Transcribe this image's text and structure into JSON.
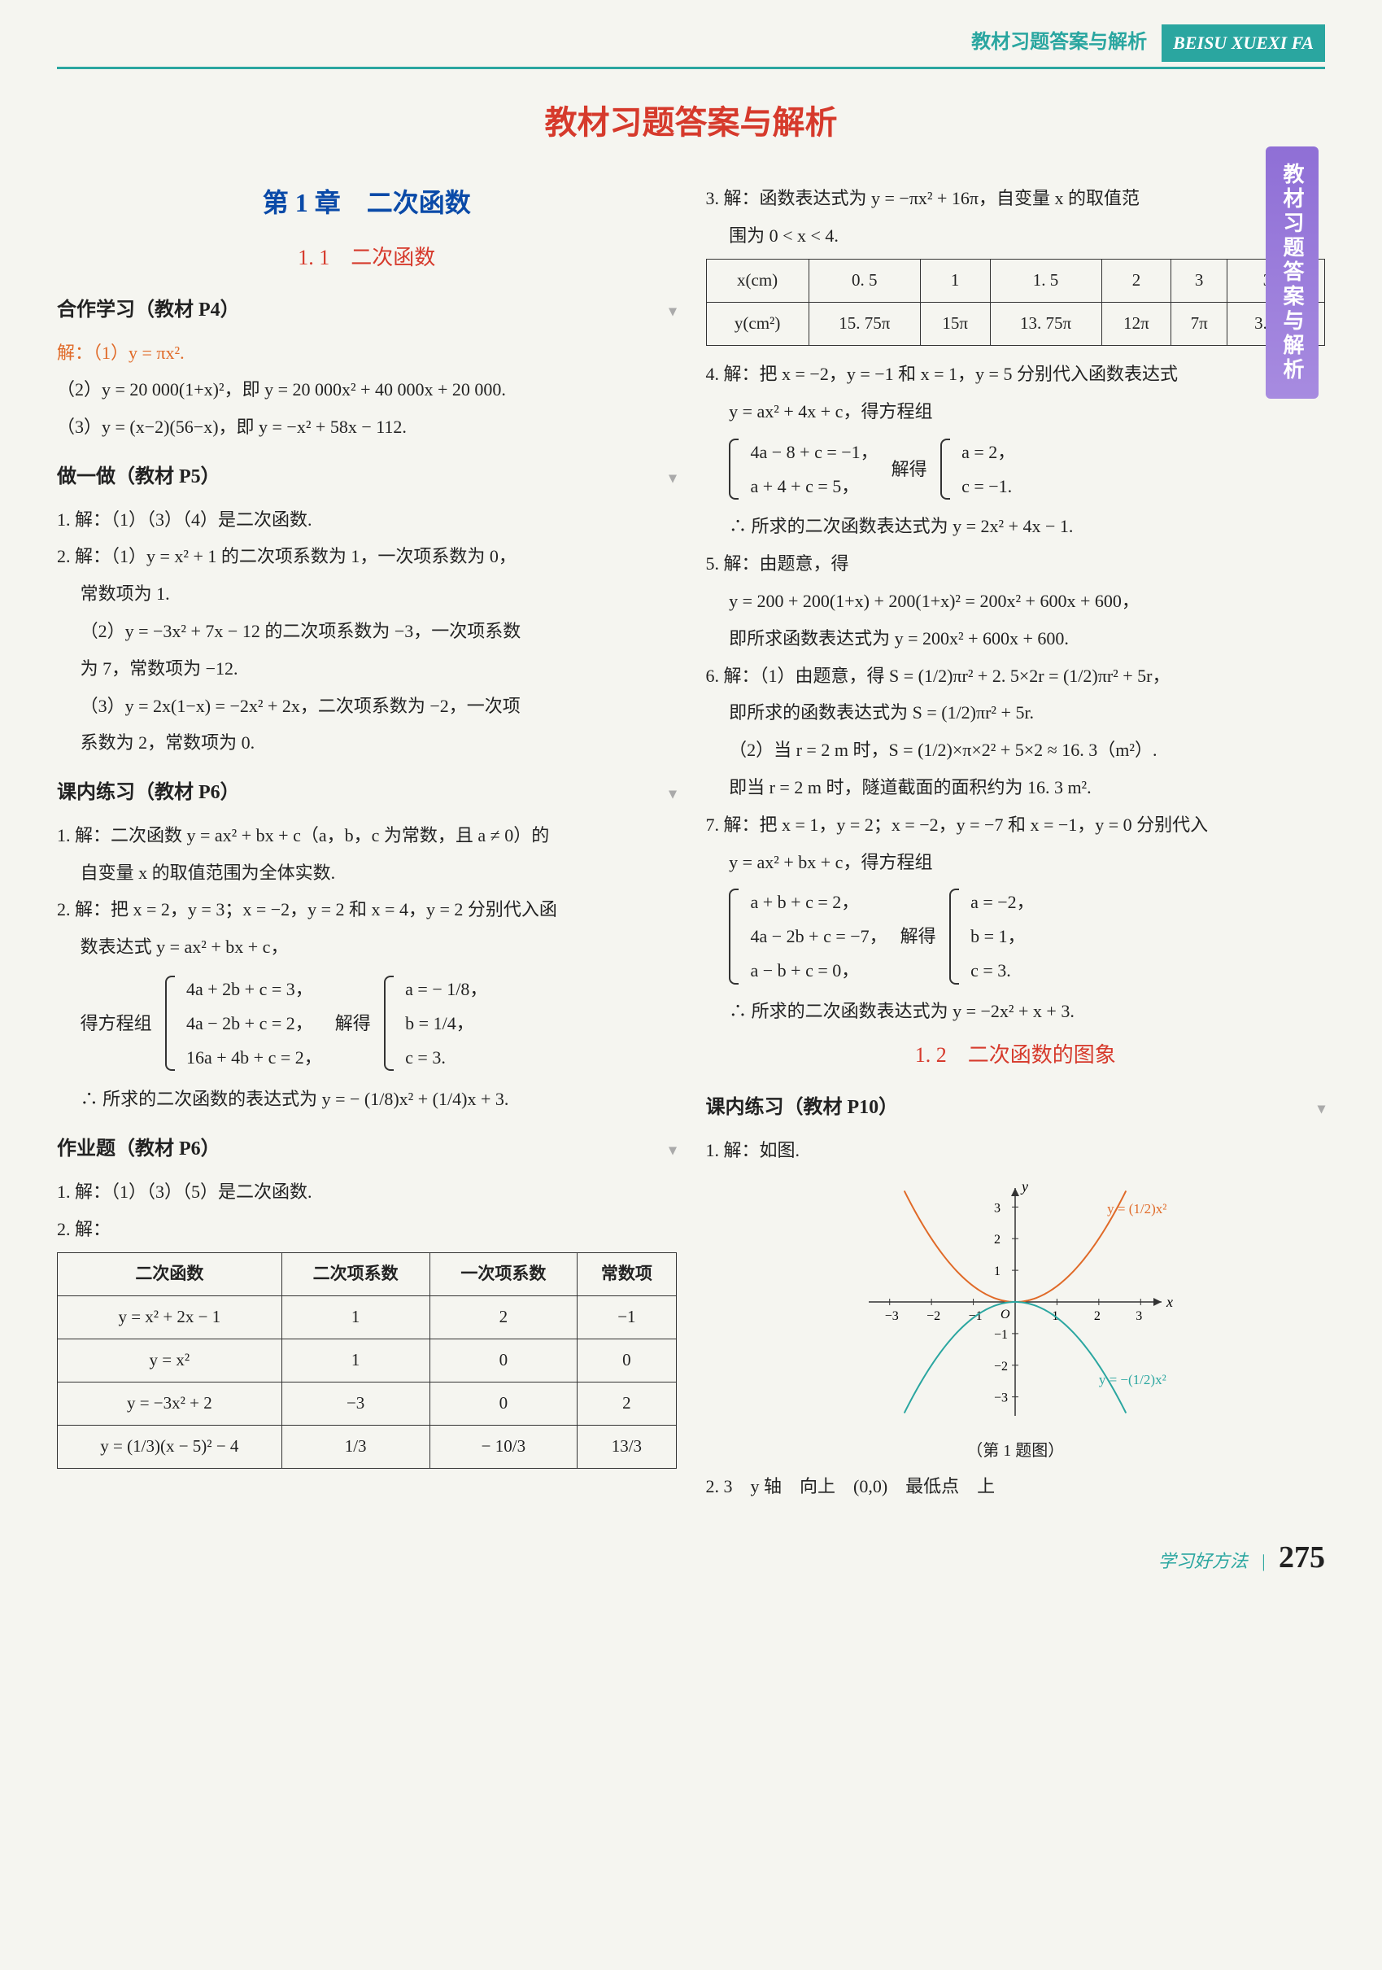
{
  "header": {
    "cn": "教材习题答案与解析",
    "badge": "BEISU XUEXI FA"
  },
  "side_tab": "教材习题答案与解析",
  "page_title": "教材习题答案与解析",
  "chapter": "第 1 章　二次函数",
  "section_1_1": "1. 1　二次函数",
  "subs": {
    "hezuo": "合作学习（教材 P4）",
    "zuoyizuo": "做一做（教材 P5）",
    "kenei6": "课内练习（教材 P6）",
    "zuoye6": "作业题（教材 P6）",
    "kenei10": "课内练习（教材 P10）"
  },
  "left": {
    "hz1": "解：（1）y = πx².",
    "hz2": "（2）y = 20 000(1+x)²，即 y = 20 000x² + 40 000x + 20 000.",
    "hz3": "（3）y = (x−2)(56−x)，即 y = −x² + 58x − 112.",
    "zy_1": "1. 解：（1）（3）（4）是二次函数.",
    "zy_2a": "2. 解：（1）y = x² + 1 的二次项系数为 1，一次项系数为 0，",
    "zy_2a2": "常数项为 1.",
    "zy_2b": "（2）y = −3x² + 7x − 12 的二次项系数为 −3，一次项系数",
    "zy_2b2": "为 7，常数项为 −12.",
    "zy_2c": "（3）y = 2x(1−x) = −2x² + 2x，二次项系数为 −2，一次项",
    "zy_2c2": "系数为 2，常数项为 0.",
    "kn1": "1. 解：二次函数 y = ax² + bx + c（a，b，c 为常数，且 a ≠ 0）的",
    "kn1b": "自变量 x 的取值范围为全体实数.",
    "kn2a": "2. 解：把 x = 2，y = 3；x = −2，y = 2 和 x = 4，y = 2 分别代入函",
    "kn2b": "数表达式 y = ax² + bx + c，",
    "kn2_brace_lead": "得方程组",
    "kn2_b1": "4a + 2b + c = 3，",
    "kn2_b2": "4a − 2b + c = 2，",
    "kn2_b3": "16a + 4b + c = 2，",
    "kn2_solve": "解得",
    "kn2_s1": "a = − 1/8，",
    "kn2_s2": "b = 1/4，",
    "kn2_s3": "c = 3.",
    "kn2_res": "∴ 所求的二次函数的表达式为 y = − (1/8)x² + (1/4)x + 3.",
    "zy6_1": "1. 解：（1）（3）（5）是二次函数.",
    "zy6_2": "2. 解：",
    "table2": {
      "headers": [
        "二次函数",
        "二次项系数",
        "一次项系数",
        "常数项"
      ],
      "rows": [
        [
          "y = x² + 2x − 1",
          "1",
          "2",
          "−1"
        ],
        [
          "y = x²",
          "1",
          "0",
          "0"
        ],
        [
          "y = −3x² + 2",
          "−3",
          "0",
          "2"
        ],
        [
          "y = (1/3)(x − 5)² − 4",
          "1/3",
          "− 10/3",
          "13/3"
        ]
      ]
    }
  },
  "right": {
    "q3a": "3. 解：函数表达式为 y = −πx² + 16π，自变量 x 的取值范",
    "q3b": "围为 0 < x < 4.",
    "table3": {
      "h": [
        "x(cm)",
        "0. 5",
        "1",
        "1. 5",
        "2",
        "3",
        "3. 5"
      ],
      "r": [
        "y(cm²)",
        "15. 75π",
        "15π",
        "13. 75π",
        "12π",
        "7π",
        "3. 75π"
      ]
    },
    "q4a": "4. 解：把 x = −2，y = −1 和 x = 1，y = 5 分别代入函数表达式",
    "q4b": "y = ax² + 4x + c，得方程组",
    "q4_b1": "4a − 8 + c = −1，",
    "q4_b2": "a + 4 + c = 5，",
    "q4_solve": "解得",
    "q4_s1": "a = 2，",
    "q4_s2": "c = −1.",
    "q4_res": "∴ 所求的二次函数表达式为 y = 2x² + 4x − 1.",
    "q5a": "5. 解：由题意，得",
    "q5b": "y = 200 + 200(1+x) + 200(1+x)² = 200x² + 600x + 600，",
    "q5c": "即所求函数表达式为 y = 200x² + 600x + 600.",
    "q6a": "6. 解：（1）由题意，得 S = (1/2)πr² + 2. 5×2r = (1/2)πr² + 5r，",
    "q6b": "即所求的函数表达式为 S = (1/2)πr² + 5r.",
    "q6c": "（2）当 r = 2 m 时，S = (1/2)×π×2² + 5×2 ≈ 16. 3（m²）.",
    "q6d": "即当 r = 2 m 时，隧道截面的面积约为 16. 3 m².",
    "q7a": "7. 解：把 x = 1，y = 2；x = −2，y = −7 和 x = −1，y = 0 分别代入",
    "q7b": "y = ax² + bx + c，得方程组",
    "q7_b1": "a + b + c = 2，",
    "q7_b2": "4a − 2b + c = −7，",
    "q7_b3": "a − b + c = 0，",
    "q7_solve": "解得",
    "q7_s1": "a = −2，",
    "q7_s2": "b = 1，",
    "q7_s3": "c = 3.",
    "q7_res": "∴ 所求的二次函数表达式为 y = −2x² + x + 3.",
    "section_1_2": "1. 2　二次函数的图象",
    "kn10_1": "1. 解：如图.",
    "graph": {
      "type": "line",
      "x_ticks": [
        "−3",
        "−2",
        "−1",
        "O",
        "1",
        "2",
        "3"
      ],
      "y_ticks": [
        "3",
        "2",
        "1",
        "−1",
        "−2",
        "−3"
      ],
      "axis_label_x": "x",
      "axis_label_y": "y",
      "curves": [
        {
          "label": "y = (1/2)x²",
          "color": "#e06a28",
          "points": [
            [
              -3,
              4.5
            ],
            [
              -2,
              2
            ],
            [
              -1,
              0.5
            ],
            [
              0,
              0
            ],
            [
              1,
              0.5
            ],
            [
              2,
              2
            ],
            [
              3,
              4.5
            ]
          ]
        },
        {
          "label": "y = −(1/2)x²",
          "color": "#2aa6a0",
          "points": [
            [
              -3,
              -4.5
            ],
            [
              -2,
              -2
            ],
            [
              -1,
              -0.5
            ],
            [
              0,
              0
            ],
            [
              1,
              -0.5
            ],
            [
              2,
              -2
            ],
            [
              3,
              -4.5
            ]
          ]
        }
      ],
      "xlim": [
        -3.5,
        3.5
      ],
      "ylim": [
        -3.6,
        3.6
      ],
      "axis_color": "#333",
      "background": "#f5f5f0",
      "line_width": 2
    },
    "graph_caption": "（第 1 题图）",
    "kn10_2": "2. 3　y 轴　向上　(0,0)　最低点　上"
  },
  "footer": {
    "label": "学习好方法",
    "page": "275"
  }
}
